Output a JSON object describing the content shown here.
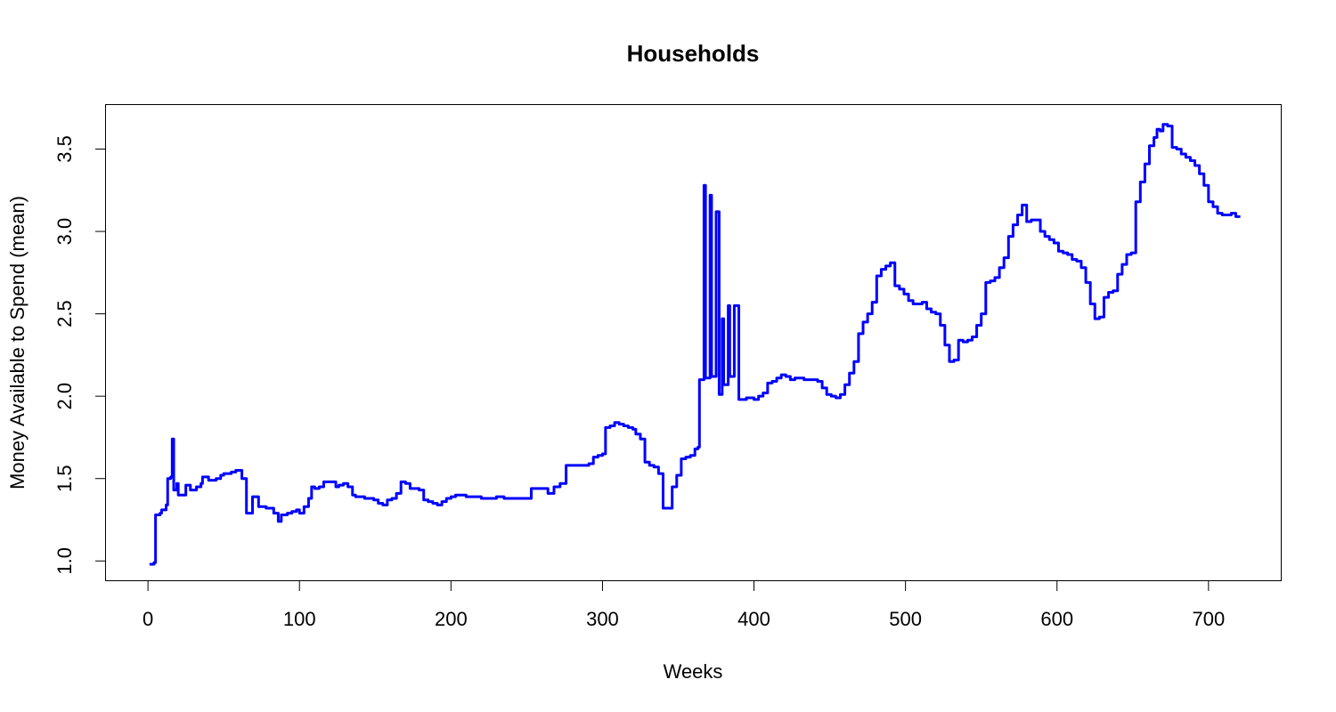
{
  "chart_data": {
    "type": "line",
    "title": "Households",
    "xlabel": "Weeks",
    "ylabel": "Money Available to Spend (mean)",
    "xlim": [
      -28,
      748
    ],
    "ylim": [
      0.88,
      3.77
    ],
    "xticks": [
      0,
      100,
      200,
      300,
      400,
      500,
      600,
      700
    ],
    "xtick_labels": [
      "0",
      "100",
      "200",
      "300",
      "400",
      "500",
      "600",
      "700"
    ],
    "yticks": [
      1.0,
      1.5,
      2.0,
      2.5,
      3.0,
      3.5
    ],
    "ytick_labels": [
      "1.0",
      "1.5",
      "2.0",
      "2.5",
      "3.0",
      "3.5"
    ],
    "grid": false,
    "line_style": "steps",
    "series": [
      {
        "color": "#0000ff",
        "x": [
          1,
          4,
          5,
          8,
          9,
          12,
          13,
          15,
          16,
          17,
          18,
          19,
          20,
          22,
          25,
          28,
          32,
          35,
          36,
          40,
          45,
          48,
          50,
          55,
          58,
          60,
          62,
          64,
          65,
          67,
          69,
          71,
          73,
          75,
          78,
          80,
          83,
          86,
          88,
          92,
          95,
          98,
          100,
          103,
          106,
          108,
          110,
          113,
          116,
          118,
          120,
          124,
          126,
          129,
          132,
          135,
          137,
          140,
          143,
          146,
          149,
          152,
          155,
          158,
          161,
          164,
          167,
          170,
          173,
          176,
          179,
          182,
          185,
          188,
          191,
          194,
          197,
          200,
          203,
          206,
          210,
          215,
          220,
          225,
          230,
          235,
          240,
          245,
          250,
          253,
          256,
          260,
          264,
          268,
          272,
          276,
          279,
          282,
          287,
          291,
          294,
          297,
          300,
          302,
          305,
          308,
          311,
          314,
          317,
          320,
          322,
          325,
          328,
          331,
          334,
          337,
          340,
          343,
          346,
          349,
          352,
          355,
          358,
          361,
          363,
          364,
          365,
          367,
          368,
          370,
          371,
          372,
          374,
          375,
          377,
          378,
          379,
          380,
          382,
          383,
          384,
          385,
          387,
          390,
          395,
          400,
          403,
          406,
          409,
          412,
          415,
          418,
          421,
          424,
          427,
          430,
          433,
          436,
          439,
          442,
          445,
          448,
          451,
          454,
          457,
          460,
          463,
          466,
          469,
          472,
          475,
          478,
          481,
          484,
          487,
          490,
          493,
          496,
          499,
          502,
          505,
          508,
          511,
          514,
          517,
          520,
          523,
          526,
          529,
          532,
          535,
          538,
          541,
          544,
          547,
          550,
          553,
          556,
          559,
          562,
          565,
          568,
          571,
          574,
          577,
          580,
          583,
          586,
          589,
          592,
          595,
          598,
          601,
          604,
          607,
          610,
          613,
          616,
          619,
          622,
          625,
          628,
          631,
          634,
          637,
          640,
          643,
          646,
          649,
          652,
          655,
          658,
          661,
          664,
          666,
          668,
          670,
          673,
          676,
          679,
          682,
          685,
          688,
          691,
          694,
          697,
          700,
          703,
          706,
          709,
          712,
          715,
          718,
          721
        ],
        "y": [
          0.98,
          0.99,
          1.28,
          1.29,
          1.31,
          1.34,
          1.5,
          1.51,
          1.74,
          1.43,
          1.43,
          1.47,
          1.4,
          1.4,
          1.46,
          1.43,
          1.45,
          1.47,
          1.51,
          1.49,
          1.5,
          1.52,
          1.53,
          1.54,
          1.55,
          1.55,
          1.5,
          1.5,
          1.29,
          1.29,
          1.39,
          1.39,
          1.33,
          1.33,
          1.32,
          1.32,
          1.29,
          1.24,
          1.28,
          1.29,
          1.3,
          1.31,
          1.29,
          1.33,
          1.38,
          1.45,
          1.44,
          1.45,
          1.48,
          1.48,
          1.48,
          1.45,
          1.46,
          1.47,
          1.45,
          1.4,
          1.39,
          1.39,
          1.38,
          1.38,
          1.37,
          1.35,
          1.34,
          1.37,
          1.38,
          1.41,
          1.48,
          1.47,
          1.44,
          1.44,
          1.43,
          1.37,
          1.36,
          1.35,
          1.34,
          1.36,
          1.38,
          1.39,
          1.4,
          1.4,
          1.39,
          1.39,
          1.38,
          1.38,
          1.39,
          1.38,
          1.38,
          1.38,
          1.38,
          1.44,
          1.44,
          1.44,
          1.41,
          1.45,
          1.47,
          1.58,
          1.58,
          1.58,
          1.58,
          1.59,
          1.63,
          1.64,
          1.65,
          1.81,
          1.82,
          1.84,
          1.83,
          1.82,
          1.81,
          1.8,
          1.77,
          1.74,
          1.6,
          1.58,
          1.57,
          1.53,
          1.32,
          1.32,
          1.45,
          1.52,
          1.62,
          1.63,
          1.64,
          1.68,
          1.69,
          2.1,
          2.1,
          3.28,
          2.11,
          2.11,
          3.22,
          2.12,
          2.12,
          3.12,
          2.01,
          2.01,
          2.47,
          2.07,
          2.07,
          2.55,
          2.12,
          2.12,
          2.55,
          1.98,
          1.99,
          1.98,
          2.0,
          2.02,
          2.08,
          2.09,
          2.11,
          2.13,
          2.12,
          2.1,
          2.11,
          2.11,
          2.1,
          2.1,
          2.1,
          2.09,
          2.05,
          2.01,
          2.0,
          1.99,
          2.01,
          2.07,
          2.14,
          2.21,
          2.38,
          2.45,
          2.5,
          2.57,
          2.73,
          2.77,
          2.79,
          2.81,
          2.67,
          2.65,
          2.62,
          2.58,
          2.56,
          2.56,
          2.57,
          2.53,
          2.51,
          2.5,
          2.43,
          2.31,
          2.21,
          2.22,
          2.34,
          2.33,
          2.34,
          2.36,
          2.43,
          2.5,
          2.69,
          2.7,
          2.72,
          2.78,
          2.84,
          2.97,
          3.04,
          3.1,
          3.16,
          3.06,
          3.07,
          3.07,
          3.0,
          2.97,
          2.95,
          2.93,
          2.88,
          2.87,
          2.86,
          2.83,
          2.82,
          2.78,
          2.69,
          2.56,
          2.47,
          2.48,
          2.6,
          2.63,
          2.64,
          2.74,
          2.8,
          2.86,
          2.87,
          3.18,
          3.3,
          3.41,
          3.52,
          3.57,
          3.62,
          3.61,
          3.65,
          3.64,
          3.51,
          3.5,
          3.47,
          3.45,
          3.43,
          3.4,
          3.35,
          3.28,
          3.18,
          3.15,
          3.11,
          3.1,
          3.1,
          3.11,
          3.09,
          3.09
        ]
      }
    ]
  }
}
